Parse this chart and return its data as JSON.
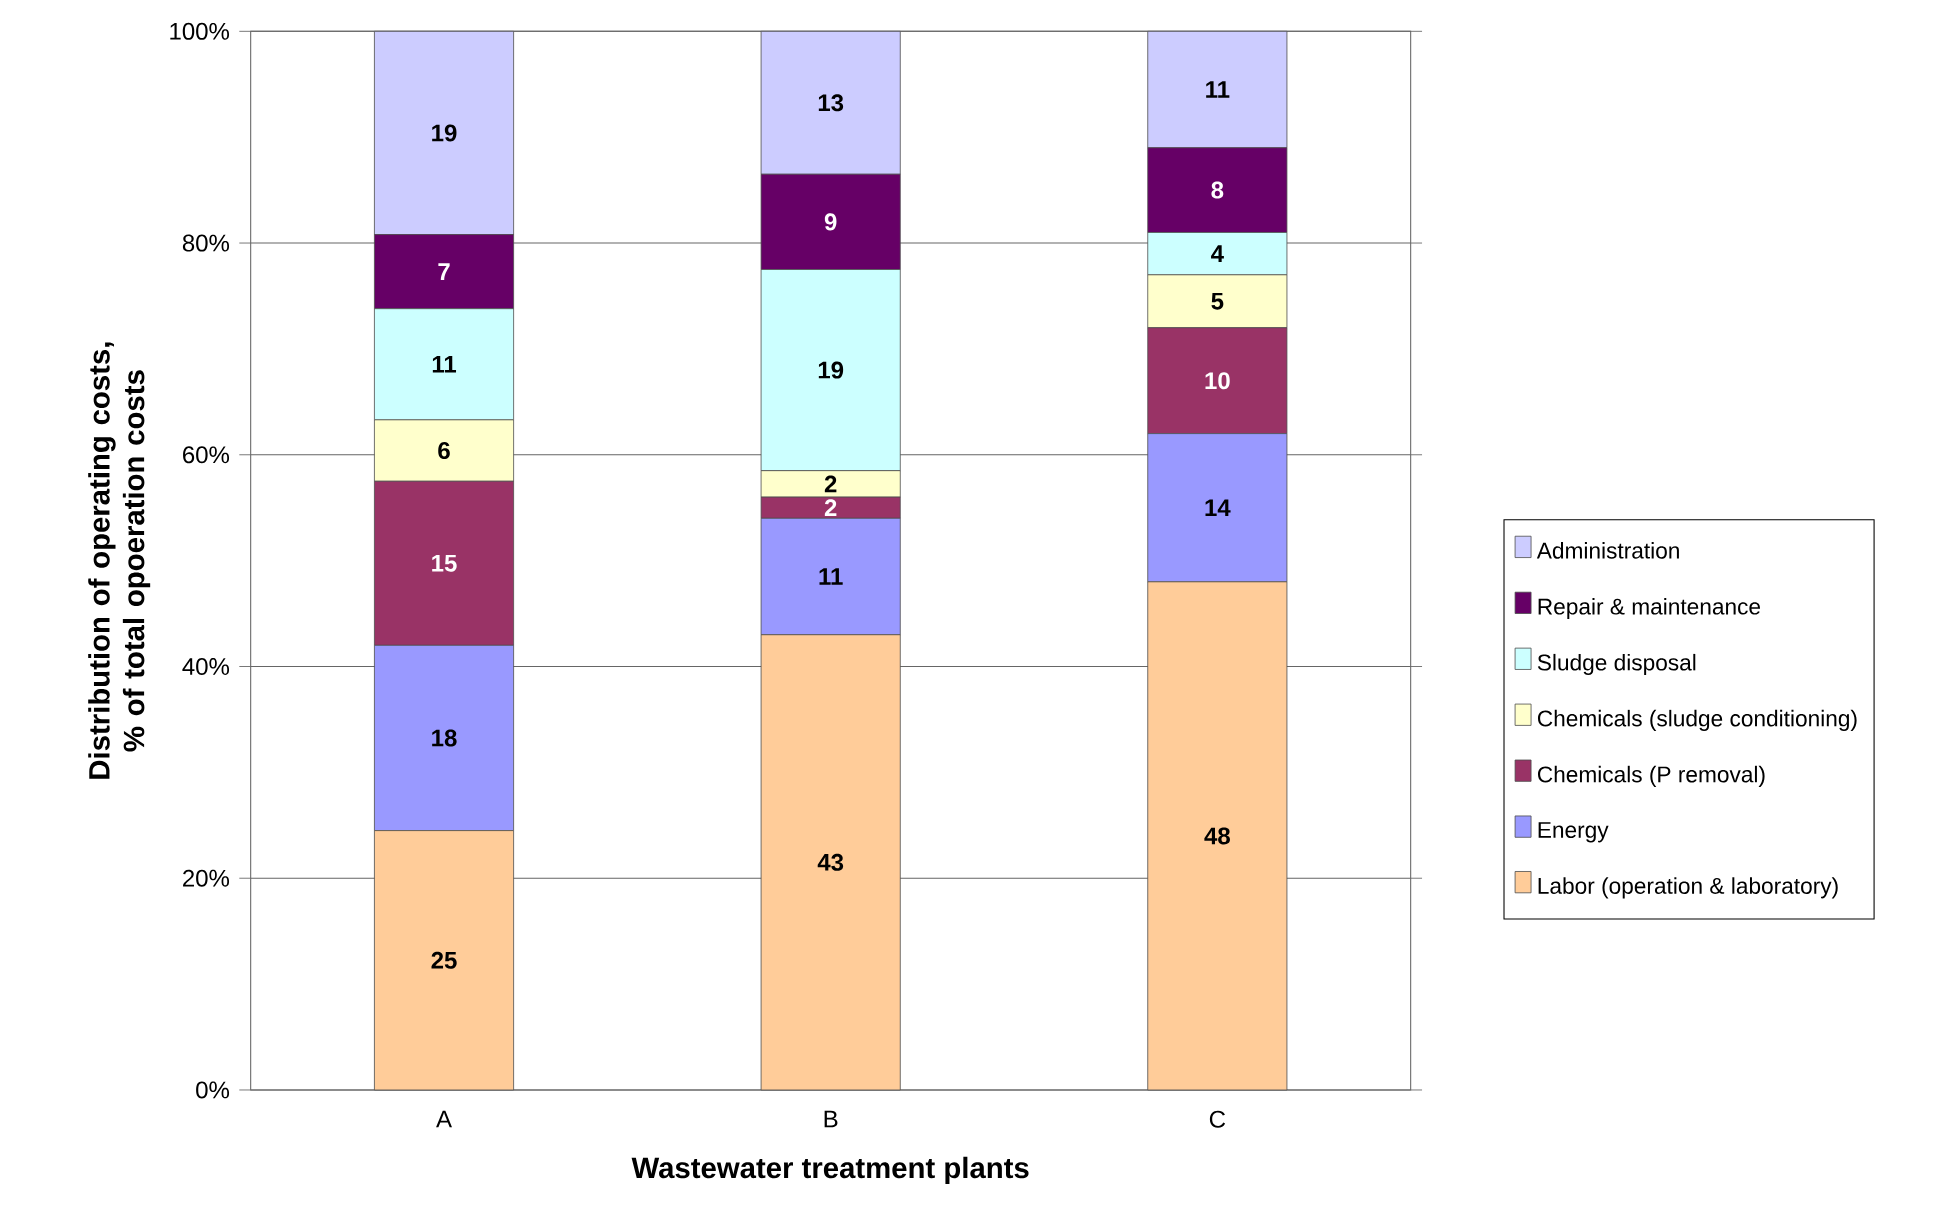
{
  "chart_data": {
    "type": "bar",
    "stacked": true,
    "xlabel": "Wastewater treatment plants",
    "ylabel": "Distribution of operating costs, % of total opoeration costs",
    "categories": [
      "A",
      "B",
      "C"
    ],
    "ylim": [
      0,
      100
    ],
    "yticks": [
      {
        "value": 0,
        "label": "0%"
      },
      {
        "value": 20,
        "label": "20%"
      },
      {
        "value": 40,
        "label": "40%"
      },
      {
        "value": 60,
        "label": "60%"
      },
      {
        "value": 80,
        "label": "80%"
      },
      {
        "value": 100,
        "label": "100%"
      }
    ],
    "grid": "y",
    "legend": "right",
    "series": [
      {
        "name": "Labor (operation & laboratory)",
        "color": "#ffcc99",
        "values": [
          24.5,
          43,
          48
        ],
        "value_labels": [
          "25",
          "43",
          "48"
        ]
      },
      {
        "name": "Energy",
        "color": "#9999ff",
        "values": [
          17.5,
          11,
          14
        ],
        "value_labels": [
          "18",
          "11",
          "14"
        ]
      },
      {
        "name": "Chemicals (P removal)",
        "color": "#993366",
        "values": [
          15.5,
          2,
          10
        ],
        "value_labels": [
          "15",
          "2",
          "10"
        ]
      },
      {
        "name": "Chemicals (sludge conditioning)",
        "color": "#ffffcc",
        "values": [
          5.8,
          2.5,
          5
        ],
        "value_labels": [
          "6",
          "2",
          "5"
        ]
      },
      {
        "name": "Sludge disposal",
        "color": "#ccffff",
        "values": [
          10.5,
          19,
          4
        ],
        "value_labels": [
          "11",
          "19",
          "4"
        ]
      },
      {
        "name": "Repair & maintenance",
        "color": "#660066",
        "values": [
          7,
          9,
          8
        ],
        "value_labels": [
          "7",
          "9",
          "8"
        ]
      },
      {
        "name": "Administration",
        "color": "#ccccff",
        "values": [
          19.2,
          13.5,
          11
        ],
        "value_labels": [
          "19",
          "13",
          "11"
        ]
      }
    ]
  }
}
